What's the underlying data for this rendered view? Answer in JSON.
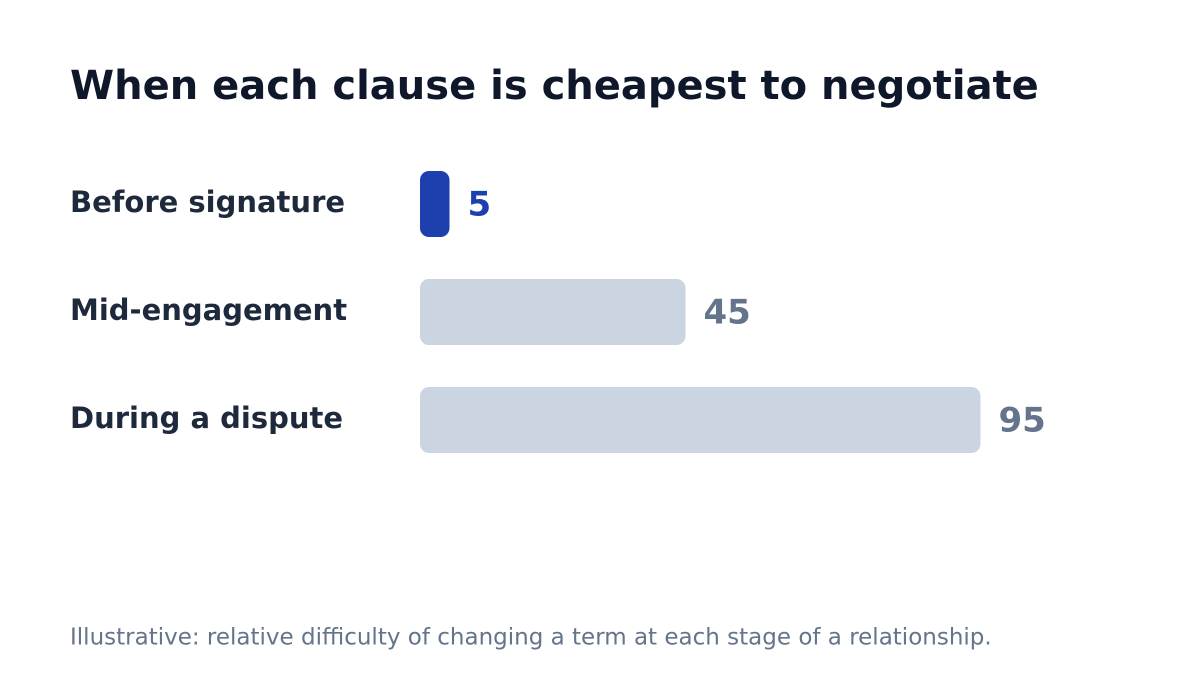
{
  "chart_data": {
    "type": "bar",
    "orientation": "horizontal",
    "title": "When each clause is cheapest to negotiate",
    "categories": [
      "Before signature",
      "Mid-engagement",
      "During a dispute"
    ],
    "values": [
      5,
      45,
      95
    ],
    "colors": [
      "#1e40af",
      "#cbd5e1",
      "#cbd5e1"
    ],
    "label_colors": [
      "#1e40af",
      "#64748b",
      "#64748b"
    ],
    "note": "Illustrative: relative difficulty of changing a term at each stage of a relationship."
  }
}
